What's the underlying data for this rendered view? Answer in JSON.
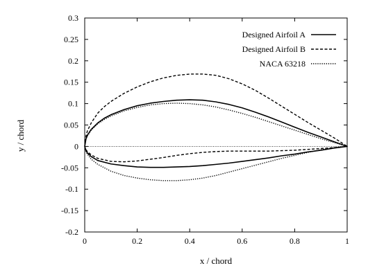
{
  "chart_data": {
    "type": "line",
    "title": "",
    "xlabel": "x / chord",
    "ylabel": "y / chord",
    "xlim": [
      0,
      1
    ],
    "ylim": [
      -0.2,
      0.3
    ],
    "x_ticks": [
      "0",
      "0.2",
      "0.4",
      "0.6",
      "0.8",
      "1"
    ],
    "y_ticks": [
      "-0.2",
      "-0.15",
      "-0.1",
      "-0.05",
      "0",
      "0.05",
      "0.1",
      "0.15",
      "0.2",
      "0.25",
      "0.3"
    ],
    "grid": false,
    "legend_position": "top-right",
    "zero_line": true,
    "series": [
      {
        "name": "Designed Airfoil A",
        "style": "solid",
        "color": "#000000",
        "upper": [
          [
            0,
            0
          ],
          [
            0.005,
            0.018
          ],
          [
            0.01,
            0.026
          ],
          [
            0.025,
            0.04
          ],
          [
            0.05,
            0.055
          ],
          [
            0.075,
            0.066
          ],
          [
            0.1,
            0.074
          ],
          [
            0.15,
            0.086
          ],
          [
            0.2,
            0.095
          ],
          [
            0.25,
            0.101
          ],
          [
            0.3,
            0.105
          ],
          [
            0.35,
            0.108
          ],
          [
            0.4,
            0.109
          ],
          [
            0.45,
            0.108
          ],
          [
            0.5,
            0.104
          ],
          [
            0.55,
            0.098
          ],
          [
            0.6,
            0.09
          ],
          [
            0.65,
            0.08
          ],
          [
            0.7,
            0.069
          ],
          [
            0.75,
            0.057
          ],
          [
            0.8,
            0.045
          ],
          [
            0.85,
            0.033
          ],
          [
            0.9,
            0.022
          ],
          [
            0.95,
            0.011
          ],
          [
            1.0,
            0.0
          ]
        ],
        "lower": [
          [
            0,
            0
          ],
          [
            0.005,
            -0.01
          ],
          [
            0.01,
            -0.015
          ],
          [
            0.025,
            -0.024
          ],
          [
            0.05,
            -0.033
          ],
          [
            0.1,
            -0.041
          ],
          [
            0.15,
            -0.045
          ],
          [
            0.2,
            -0.048
          ],
          [
            0.25,
            -0.049
          ],
          [
            0.3,
            -0.049
          ],
          [
            0.35,
            -0.048
          ],
          [
            0.4,
            -0.047
          ],
          [
            0.45,
            -0.045
          ],
          [
            0.5,
            -0.042
          ],
          [
            0.55,
            -0.039
          ],
          [
            0.6,
            -0.035
          ],
          [
            0.65,
            -0.031
          ],
          [
            0.7,
            -0.027
          ],
          [
            0.75,
            -0.022
          ],
          [
            0.8,
            -0.018
          ],
          [
            0.85,
            -0.013
          ],
          [
            0.9,
            -0.009
          ],
          [
            0.95,
            -0.004
          ],
          [
            1.0,
            0.0
          ]
        ]
      },
      {
        "name": "Designed Airfoil B",
        "style": "dashed",
        "color": "#000000",
        "upper": [
          [
            0,
            0
          ],
          [
            0.005,
            0.025
          ],
          [
            0.01,
            0.036
          ],
          [
            0.025,
            0.055
          ],
          [
            0.05,
            0.078
          ],
          [
            0.075,
            0.093
          ],
          [
            0.1,
            0.105
          ],
          [
            0.15,
            0.124
          ],
          [
            0.2,
            0.139
          ],
          [
            0.25,
            0.151
          ],
          [
            0.3,
            0.16
          ],
          [
            0.35,
            0.166
          ],
          [
            0.4,
            0.169
          ],
          [
            0.45,
            0.169
          ],
          [
            0.5,
            0.166
          ],
          [
            0.55,
            0.158
          ],
          [
            0.6,
            0.146
          ],
          [
            0.65,
            0.131
          ],
          [
            0.7,
            0.113
          ],
          [
            0.75,
            0.094
          ],
          [
            0.8,
            0.075
          ],
          [
            0.85,
            0.056
          ],
          [
            0.9,
            0.038
          ],
          [
            0.95,
            0.02
          ],
          [
            1.0,
            0.0
          ]
        ],
        "lower": [
          [
            0,
            0
          ],
          [
            0.005,
            -0.008
          ],
          [
            0.01,
            -0.012
          ],
          [
            0.025,
            -0.02
          ],
          [
            0.05,
            -0.028
          ],
          [
            0.1,
            -0.035
          ],
          [
            0.15,
            -0.036
          ],
          [
            0.2,
            -0.034
          ],
          [
            0.25,
            -0.03
          ],
          [
            0.3,
            -0.026
          ],
          [
            0.35,
            -0.021
          ],
          [
            0.4,
            -0.017
          ],
          [
            0.45,
            -0.014
          ],
          [
            0.5,
            -0.012
          ],
          [
            0.55,
            -0.011
          ],
          [
            0.6,
            -0.011
          ],
          [
            0.65,
            -0.011
          ],
          [
            0.7,
            -0.011
          ],
          [
            0.75,
            -0.01
          ],
          [
            0.8,
            -0.009
          ],
          [
            0.85,
            -0.007
          ],
          [
            0.9,
            -0.005
          ],
          [
            0.95,
            -0.003
          ],
          [
            1.0,
            0.0
          ]
        ]
      },
      {
        "name": "NACA 63218",
        "style": "dotted",
        "color": "#000000",
        "upper": [
          [
            0,
            0
          ],
          [
            0.005,
            0.017
          ],
          [
            0.01,
            0.024
          ],
          [
            0.025,
            0.038
          ],
          [
            0.05,
            0.053
          ],
          [
            0.075,
            0.063
          ],
          [
            0.1,
            0.071
          ],
          [
            0.15,
            0.083
          ],
          [
            0.2,
            0.091
          ],
          [
            0.25,
            0.097
          ],
          [
            0.3,
            0.1
          ],
          [
            0.35,
            0.101
          ],
          [
            0.4,
            0.1
          ],
          [
            0.45,
            0.097
          ],
          [
            0.5,
            0.092
          ],
          [
            0.55,
            0.085
          ],
          [
            0.6,
            0.077
          ],
          [
            0.65,
            0.068
          ],
          [
            0.7,
            0.058
          ],
          [
            0.75,
            0.048
          ],
          [
            0.8,
            0.038
          ],
          [
            0.85,
            0.028
          ],
          [
            0.9,
            0.018
          ],
          [
            0.95,
            0.009
          ],
          [
            1.0,
            0.0
          ]
        ],
        "lower": [
          [
            0,
            0
          ],
          [
            0.005,
            -0.012
          ],
          [
            0.01,
            -0.018
          ],
          [
            0.025,
            -0.03
          ],
          [
            0.05,
            -0.042
          ],
          [
            0.1,
            -0.058
          ],
          [
            0.15,
            -0.068
          ],
          [
            0.2,
            -0.074
          ],
          [
            0.25,
            -0.078
          ],
          [
            0.3,
            -0.08
          ],
          [
            0.35,
            -0.08
          ],
          [
            0.4,
            -0.078
          ],
          [
            0.45,
            -0.074
          ],
          [
            0.5,
            -0.068
          ],
          [
            0.55,
            -0.06
          ],
          [
            0.6,
            -0.052
          ],
          [
            0.65,
            -0.044
          ],
          [
            0.7,
            -0.036
          ],
          [
            0.75,
            -0.028
          ],
          [
            0.8,
            -0.021
          ],
          [
            0.85,
            -0.014
          ],
          [
            0.9,
            -0.008
          ],
          [
            0.95,
            -0.003
          ],
          [
            1.0,
            0.0
          ]
        ]
      }
    ]
  }
}
